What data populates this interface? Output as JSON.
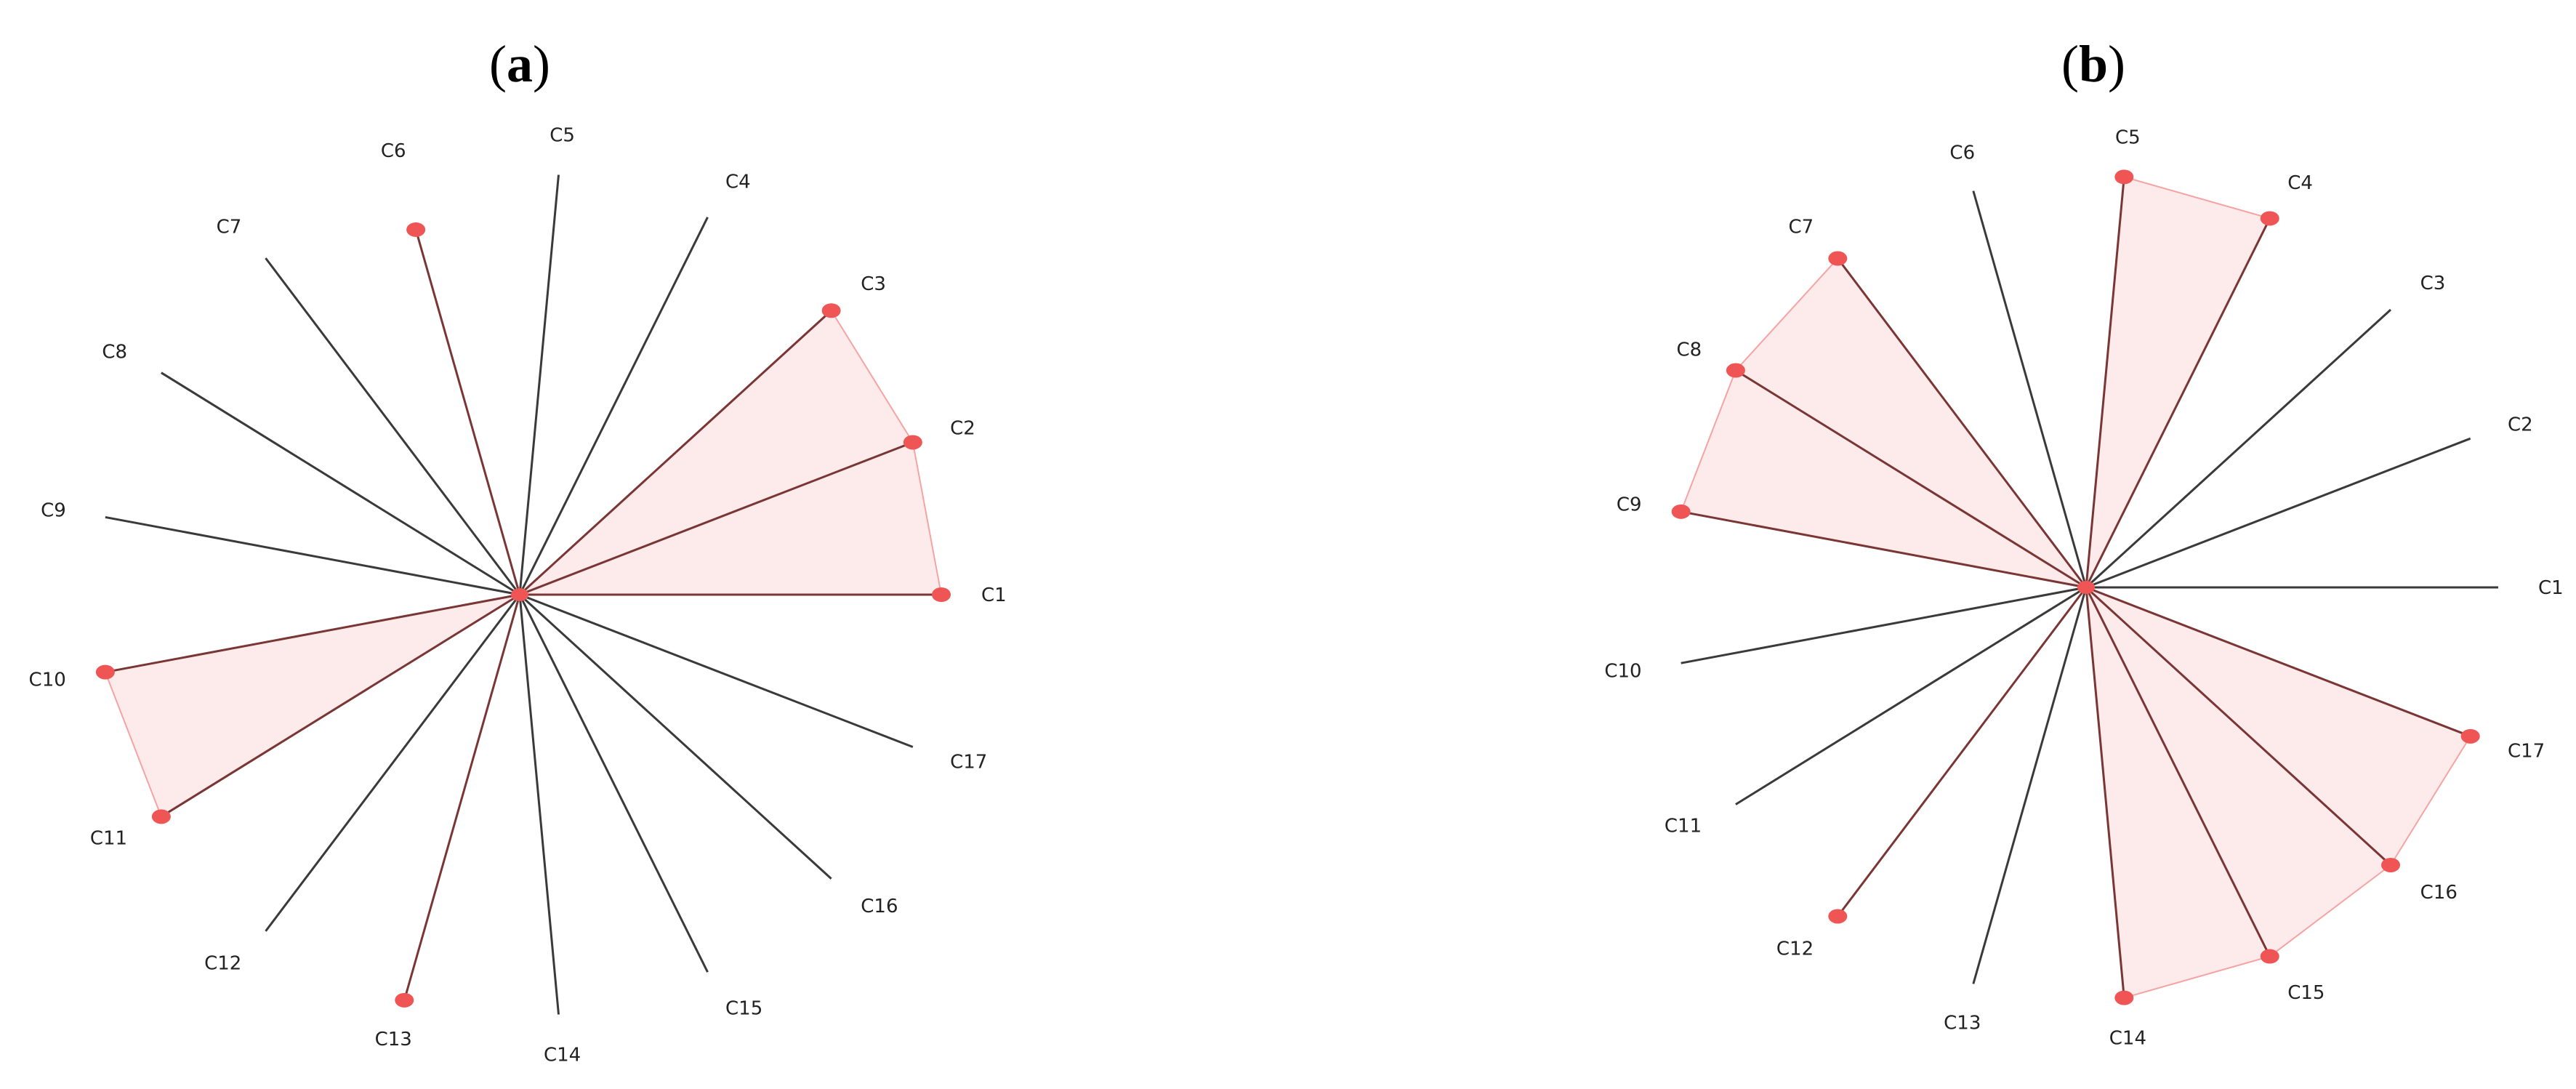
{
  "chart_data": [
    {
      "type": "radar",
      "panel_label": "a",
      "axes": [
        "C1",
        "C2",
        "C3",
        "C4",
        "C5",
        "C6",
        "C7",
        "C8",
        "C9",
        "C10",
        "C11",
        "C12",
        "C13",
        "C14",
        "C15",
        "C16",
        "C17"
      ],
      "rlim": [
        0,
        1
      ],
      "values": [
        1,
        1,
        1,
        0,
        0,
        0.9,
        0,
        0,
        0,
        1,
        1,
        0,
        1,
        0,
        0,
        0,
        0
      ],
      "grid": false,
      "legend": "none",
      "colors": {
        "line": "#3a3a3a",
        "active_line": "#7a3535",
        "marker": "#ef5555",
        "fill": "#fdeaea",
        "edge": "#f5a3a3"
      }
    },
    {
      "type": "radar",
      "panel_label": "b",
      "axes": [
        "C1",
        "C2",
        "C3",
        "C4",
        "C5",
        "C6",
        "C7",
        "C8",
        "C9",
        "C10",
        "C11",
        "C12",
        "C13",
        "C14",
        "C15",
        "C16",
        "C17"
      ],
      "rlim": [
        0,
        1
      ],
      "values": [
        0,
        0,
        0,
        1,
        1,
        0,
        1,
        1,
        1,
        0,
        0,
        1,
        0,
        1,
        1,
        1,
        1
      ],
      "grid": false,
      "legend": "none",
      "colors": {
        "line": "#3a3a3a",
        "active_line": "#7a3535",
        "marker": "#ef5555",
        "fill": "#fdeaea",
        "edge": "#f5a3a3"
      }
    }
  ]
}
